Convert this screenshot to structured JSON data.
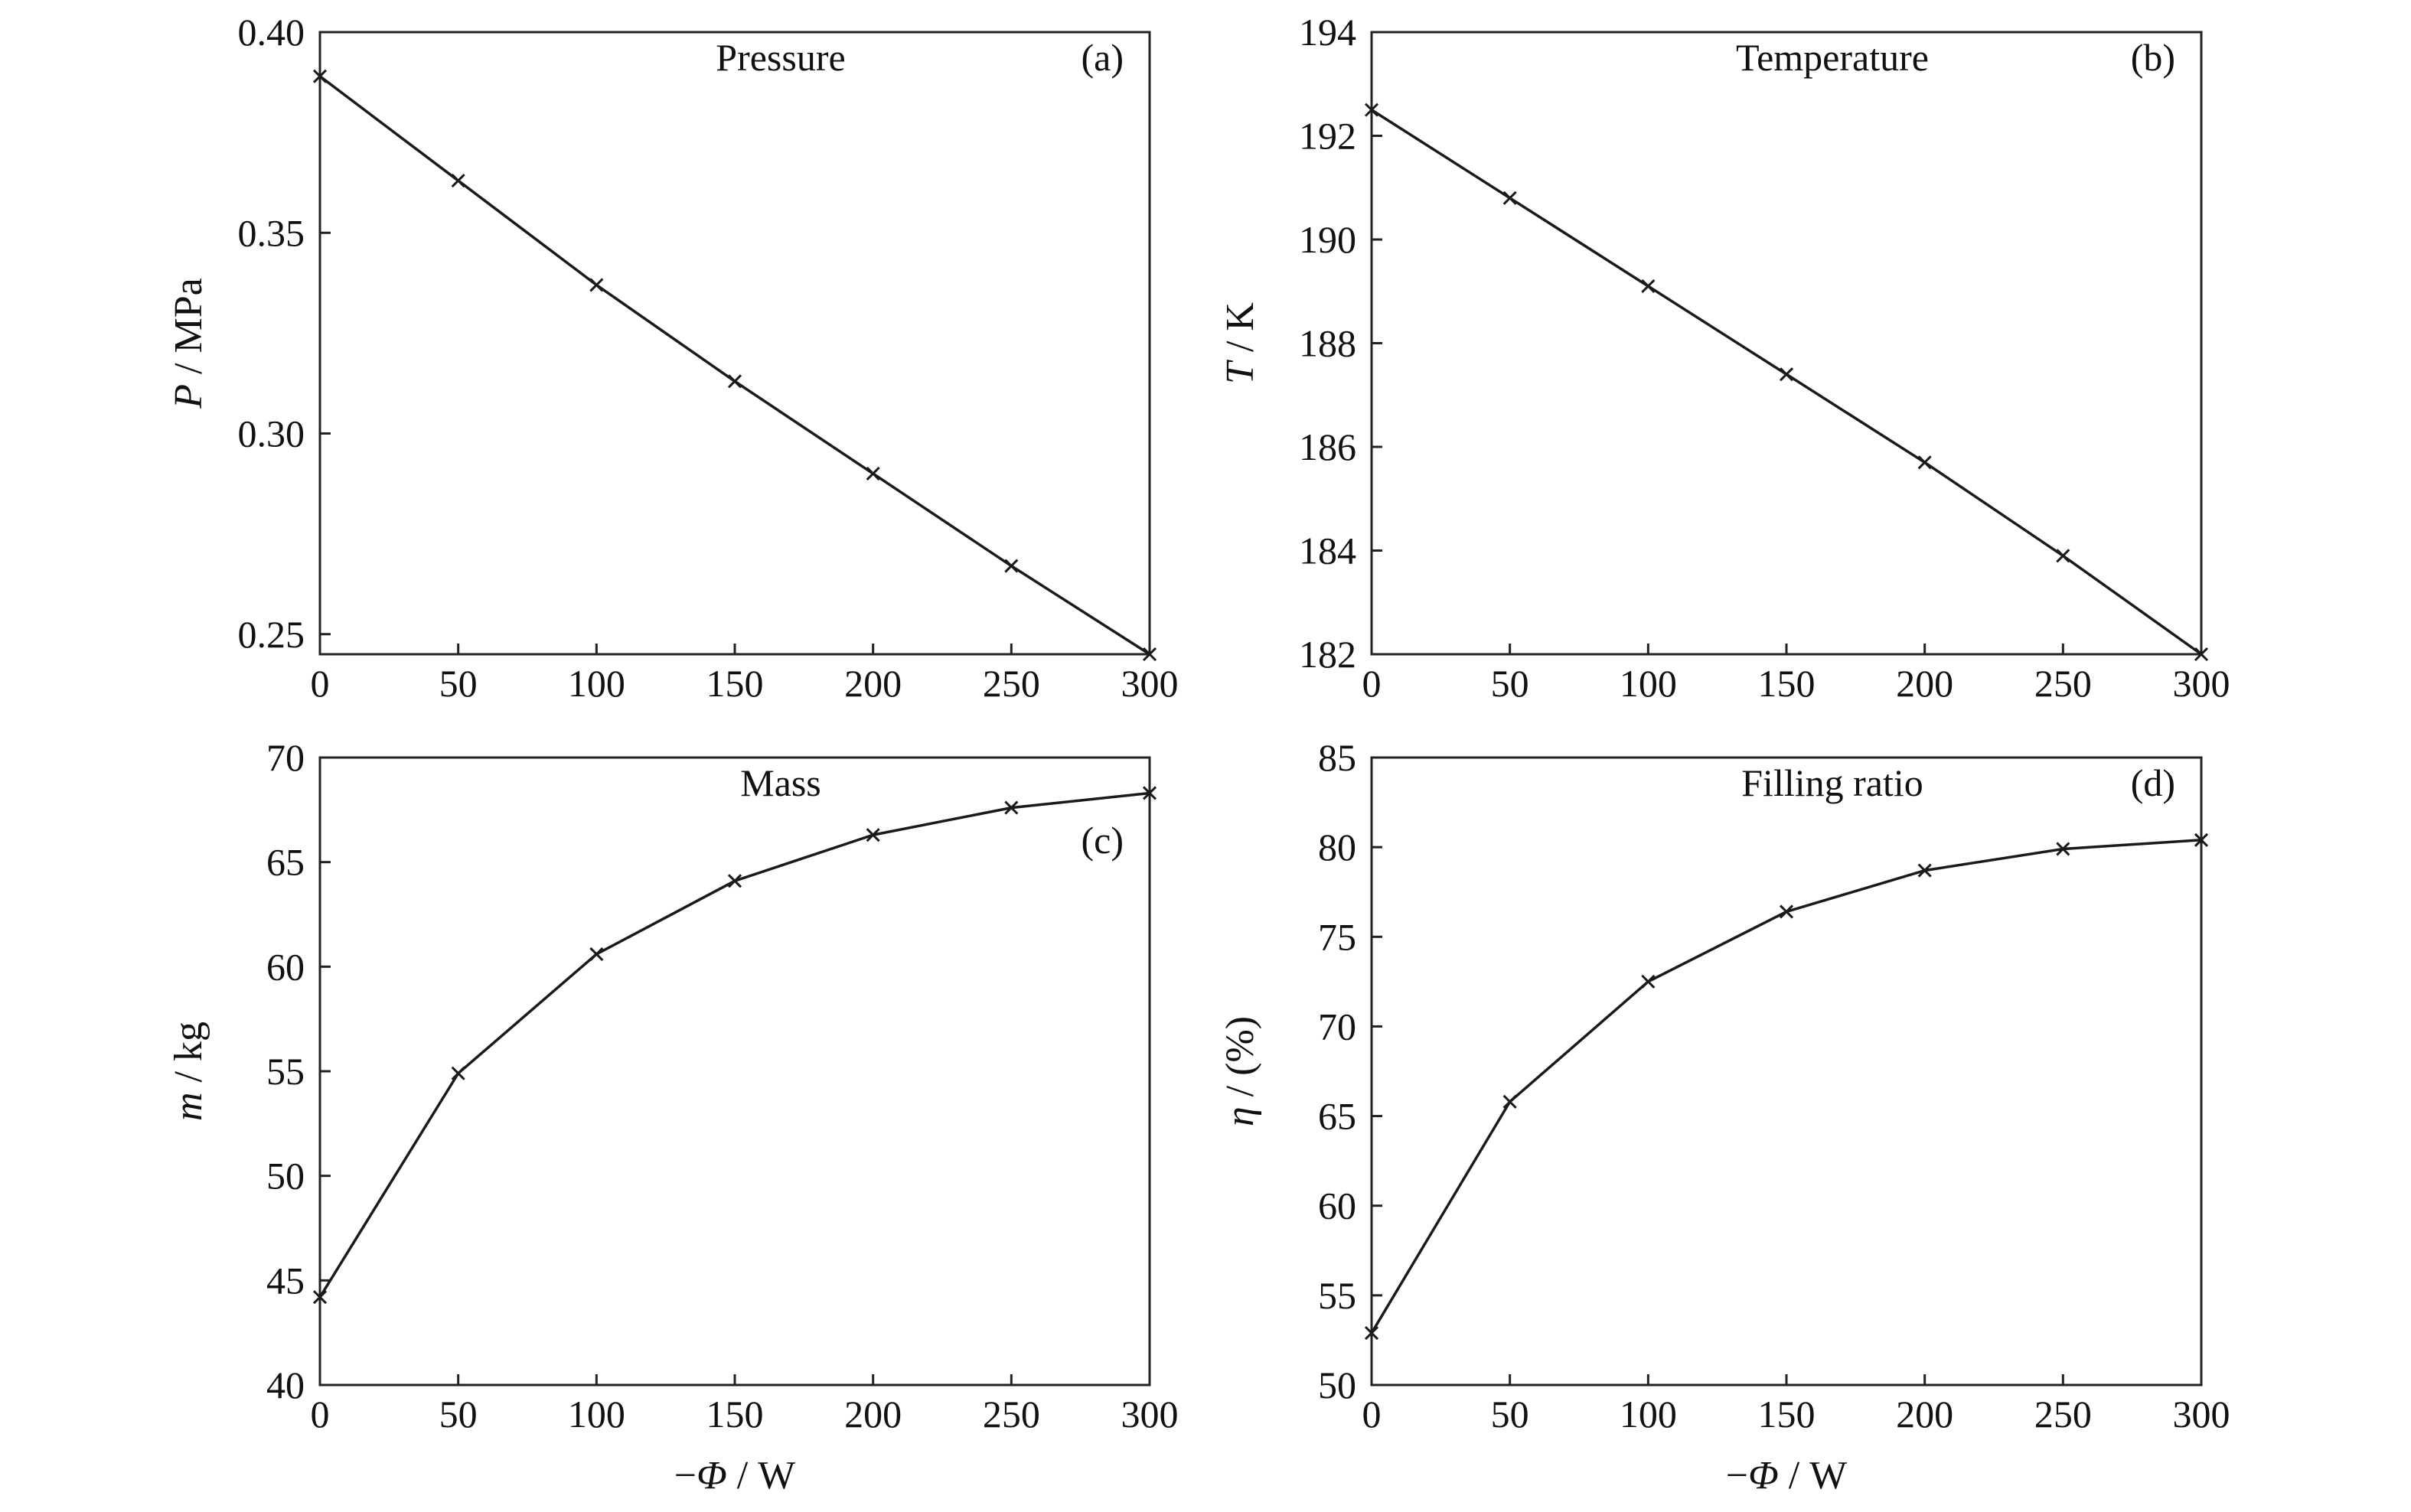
{
  "chart_data": [
    {
      "type": "line",
      "panel": "(a)",
      "title": "Pressure",
      "ylabel": {
        "var": "P",
        "unit": " / MPa"
      },
      "x": [
        0,
        50,
        100,
        150,
        200,
        250,
        300
      ],
      "series": [
        {
          "values": [
            0.389,
            0.363,
            0.337,
            0.313,
            0.29,
            0.267,
            0.245
          ]
        }
      ],
      "xlim": [
        0,
        300
      ],
      "ylim": [
        0.245,
        0.4
      ],
      "xticks": [
        0,
        50,
        100,
        150,
        200,
        250,
        300
      ],
      "xtick_labels": [
        "0",
        "50",
        "100",
        "150",
        "200",
        "250",
        "300"
      ],
      "yticks": [
        0.25,
        0.3,
        0.35,
        0.4
      ],
      "ytick_labels": [
        "0.25",
        "0.30",
        "0.35",
        "0.40"
      ],
      "grid": false
    },
    {
      "type": "line",
      "panel": "(b)",
      "title": "Temperature",
      "ylabel": {
        "var": "T",
        "unit": " / K"
      },
      "x": [
        0,
        50,
        100,
        150,
        200,
        250,
        300
      ],
      "series": [
        {
          "values": [
            192.5,
            190.8,
            189.1,
            187.4,
            185.7,
            183.9,
            182.0
          ]
        }
      ],
      "xlim": [
        0,
        300
      ],
      "ylim": [
        182,
        194
      ],
      "xticks": [
        0,
        50,
        100,
        150,
        200,
        250,
        300
      ],
      "xtick_labels": [
        "0",
        "50",
        "100",
        "150",
        "200",
        "250",
        "300"
      ],
      "yticks": [
        182,
        184,
        186,
        188,
        190,
        192,
        194
      ],
      "ytick_labels": [
        "182",
        "184",
        "186",
        "188",
        "190",
        "192",
        "194"
      ],
      "grid": false
    },
    {
      "type": "line",
      "panel": "(c)",
      "title": "Mass",
      "ylabel": {
        "var": "m",
        "unit": " / kg"
      },
      "xlabel": {
        "prefix": "−",
        "var": "Φ",
        "unit": " / W"
      },
      "x": [
        0,
        50,
        100,
        150,
        200,
        250,
        300
      ],
      "series": [
        {
          "values": [
            44.2,
            54.9,
            60.6,
            64.1,
            66.3,
            67.6,
            68.3
          ]
        }
      ],
      "xlim": [
        0,
        300
      ],
      "ylim": [
        40,
        70
      ],
      "xticks": [
        0,
        50,
        100,
        150,
        200,
        250,
        300
      ],
      "xtick_labels": [
        "0",
        "50",
        "100",
        "150",
        "200",
        "250",
        "300"
      ],
      "yticks": [
        40,
        45,
        50,
        55,
        60,
        65,
        70
      ],
      "ytick_labels": [
        "40",
        "45",
        "50",
        "55",
        "60",
        "65",
        "70"
      ],
      "grid": false
    },
    {
      "type": "line",
      "panel": "(d)",
      "title": "Filling ratio",
      "ylabel": {
        "var": "η",
        "unit": " / (%)"
      },
      "xlabel": {
        "prefix": "−",
        "var": "Φ",
        "unit": " / W"
      },
      "x": [
        0,
        50,
        100,
        150,
        200,
        250,
        300
      ],
      "series": [
        {
          "values": [
            52.9,
            65.8,
            72.5,
            76.4,
            78.7,
            79.9,
            80.4
          ]
        }
      ],
      "xlim": [
        0,
        300
      ],
      "ylim": [
        50,
        85
      ],
      "xticks": [
        0,
        50,
        100,
        150,
        200,
        250,
        300
      ],
      "xtick_labels": [
        "0",
        "50",
        "100",
        "150",
        "200",
        "250",
        "300"
      ],
      "yticks": [
        50,
        55,
        60,
        65,
        70,
        75,
        80,
        85
      ],
      "ytick_labels": [
        "50",
        "55",
        "60",
        "65",
        "70",
        "75",
        "80",
        "85"
      ],
      "grid": false
    }
  ]
}
